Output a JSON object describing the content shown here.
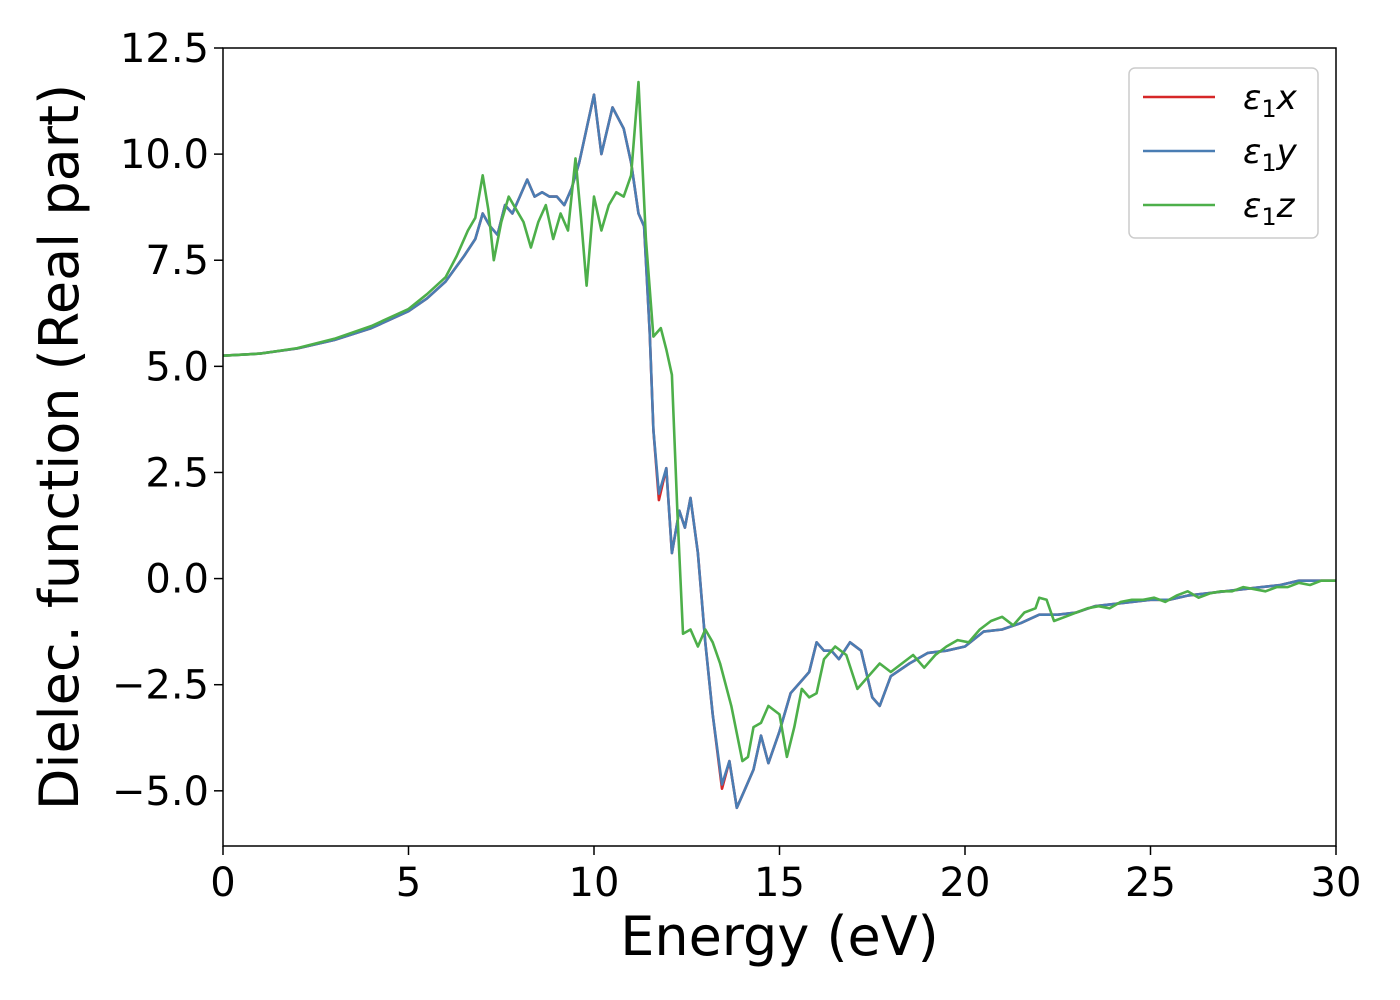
{
  "chart_data": {
    "type": "line",
    "title": "",
    "xlabel": "Energy (eV)",
    "ylabel": "Dielec. function (Real part)",
    "xlim": [
      0,
      30
    ],
    "ylim": [
      -6.3,
      12.5
    ],
    "xticks": [
      0,
      5,
      10,
      15,
      20,
      25,
      30
    ],
    "yticks": [
      -5.0,
      -2.5,
      0.0,
      2.5,
      5.0,
      7.5,
      10.0,
      12.5
    ],
    "xtick_labels": [
      "0",
      "5",
      "10",
      "15",
      "20",
      "25",
      "30"
    ],
    "ytick_labels": [
      "−5.0",
      "−2.5",
      "0.0",
      "2.5",
      "5.0",
      "7.5",
      "10.0",
      "12.5"
    ],
    "grid": false,
    "legend_position": "top-right",
    "series": [
      {
        "name": "ε₁x",
        "label_main": "ε",
        "label_sub": "1",
        "label_var": "x",
        "color": "#d62728",
        "x": [
          0,
          1,
          2,
          3,
          4,
          5,
          5.5,
          6,
          6.5,
          6.8,
          7.0,
          7.2,
          7.4,
          7.6,
          7.8,
          8.0,
          8.2,
          8.4,
          8.6,
          8.8,
          9.0,
          9.2,
          9.4,
          9.6,
          9.8,
          10.0,
          10.2,
          10.5,
          10.8,
          11.0,
          11.2,
          11.35,
          11.5,
          11.6,
          11.75,
          11.95,
          12.1,
          12.3,
          12.45,
          12.6,
          12.8,
          13.0,
          13.2,
          13.45,
          13.65,
          13.85,
          14.05,
          14.3,
          14.5,
          14.7,
          15.0,
          15.3,
          15.6,
          15.8,
          16.0,
          16.2,
          16.4,
          16.6,
          16.9,
          17.2,
          17.5,
          17.7,
          18.0,
          18.5,
          19.0,
          19.5,
          20.0,
          20.5,
          21.0,
          21.5,
          22.0,
          22.5,
          23.0,
          23.5,
          24.0,
          24.5,
          25.0,
          25.5,
          26.0,
          26.5,
          27.0,
          27.5,
          28.0,
          28.5,
          29.0,
          29.5,
          30.0
        ],
        "y": [
          5.25,
          5.3,
          5.42,
          5.62,
          5.9,
          6.3,
          6.6,
          7.0,
          7.6,
          8.0,
          8.6,
          8.3,
          8.1,
          8.8,
          8.6,
          9.0,
          9.4,
          9.0,
          9.1,
          9.0,
          9.0,
          8.8,
          9.2,
          9.8,
          10.6,
          11.4,
          10.0,
          11.1,
          10.6,
          9.8,
          8.6,
          8.3,
          5.8,
          3.5,
          1.85,
          2.6,
          0.6,
          1.6,
          1.2,
          1.9,
          0.6,
          -1.5,
          -3.2,
          -4.95,
          -4.3,
          -5.4,
          -5.0,
          -4.5,
          -3.7,
          -4.35,
          -3.6,
          -2.7,
          -2.4,
          -2.2,
          -1.5,
          -1.7,
          -1.7,
          -1.9,
          -1.5,
          -1.7,
          -2.8,
          -3.0,
          -2.3,
          -2.0,
          -1.75,
          -1.7,
          -1.6,
          -1.25,
          -1.2,
          -1.05,
          -0.85,
          -0.85,
          -0.8,
          -0.65,
          -0.6,
          -0.55,
          -0.5,
          -0.5,
          -0.4,
          -0.35,
          -0.3,
          -0.25,
          -0.2,
          -0.15,
          -0.05,
          -0.05,
          -0.05
        ]
      },
      {
        "name": "ε₁y",
        "label_main": "ε",
        "label_sub": "1",
        "label_var": "y",
        "color": "#4a7db3",
        "x": [
          0,
          1,
          2,
          3,
          4,
          5,
          5.5,
          6,
          6.5,
          6.8,
          7.0,
          7.2,
          7.4,
          7.6,
          7.8,
          8.0,
          8.2,
          8.4,
          8.6,
          8.8,
          9.0,
          9.2,
          9.4,
          9.6,
          9.8,
          10.0,
          10.2,
          10.5,
          10.8,
          11.0,
          11.2,
          11.35,
          11.5,
          11.6,
          11.75,
          11.95,
          12.1,
          12.3,
          12.45,
          12.6,
          12.8,
          13.0,
          13.2,
          13.45,
          13.65,
          13.85,
          14.05,
          14.3,
          14.5,
          14.7,
          15.0,
          15.3,
          15.6,
          15.8,
          16.0,
          16.2,
          16.4,
          16.6,
          16.9,
          17.2,
          17.5,
          17.7,
          18.0,
          18.5,
          19.0,
          19.5,
          20.0,
          20.5,
          21.0,
          21.5,
          22.0,
          22.5,
          23.0,
          23.5,
          24.0,
          24.5,
          25.0,
          25.5,
          26.0,
          26.5,
          27.0,
          27.5,
          28.0,
          28.5,
          29.0,
          29.5,
          30.0
        ],
        "y": [
          5.25,
          5.3,
          5.42,
          5.62,
          5.9,
          6.3,
          6.6,
          7.0,
          7.6,
          8.0,
          8.6,
          8.3,
          8.1,
          8.8,
          8.6,
          9.0,
          9.4,
          9.0,
          9.1,
          9.0,
          9.0,
          8.8,
          9.2,
          9.8,
          10.6,
          11.4,
          10.0,
          11.1,
          10.6,
          9.8,
          8.6,
          8.3,
          5.8,
          3.5,
          2.0,
          2.6,
          0.6,
          1.6,
          1.2,
          1.9,
          0.6,
          -1.5,
          -3.2,
          -4.85,
          -4.3,
          -5.4,
          -5.0,
          -4.5,
          -3.7,
          -4.35,
          -3.6,
          -2.7,
          -2.4,
          -2.2,
          -1.5,
          -1.7,
          -1.7,
          -1.9,
          -1.5,
          -1.7,
          -2.8,
          -3.0,
          -2.3,
          -2.0,
          -1.75,
          -1.7,
          -1.6,
          -1.25,
          -1.2,
          -1.05,
          -0.85,
          -0.85,
          -0.8,
          -0.65,
          -0.6,
          -0.55,
          -0.5,
          -0.5,
          -0.4,
          -0.35,
          -0.3,
          -0.25,
          -0.2,
          -0.15,
          -0.05,
          -0.05,
          -0.05
        ]
      },
      {
        "name": "ε₁z",
        "label_main": "ε",
        "label_sub": "1",
        "label_var": "z",
        "color": "#4daf4a",
        "x": [
          0,
          1,
          2,
          3,
          4,
          5,
          5.5,
          6,
          6.3,
          6.6,
          6.8,
          7.0,
          7.15,
          7.3,
          7.5,
          7.7,
          7.9,
          8.1,
          8.3,
          8.5,
          8.7,
          8.9,
          9.1,
          9.3,
          9.5,
          9.65,
          9.8,
          10.0,
          10.2,
          10.4,
          10.6,
          10.8,
          11.0,
          11.2,
          11.4,
          11.6,
          11.8,
          11.95,
          12.1,
          12.25,
          12.4,
          12.6,
          12.8,
          13.0,
          13.2,
          13.4,
          13.7,
          14.0,
          14.15,
          14.3,
          14.5,
          14.7,
          15.0,
          15.2,
          15.4,
          15.6,
          15.8,
          16.0,
          16.2,
          16.5,
          16.8,
          17.1,
          17.4,
          17.7,
          18.0,
          18.3,
          18.6,
          18.9,
          19.2,
          19.5,
          19.8,
          20.1,
          20.4,
          20.7,
          21.0,
          21.3,
          21.6,
          21.9,
          22.0,
          22.2,
          22.4,
          22.7,
          23.0,
          23.3,
          23.6,
          23.9,
          24.2,
          24.5,
          24.8,
          25.1,
          25.4,
          25.7,
          26.0,
          26.3,
          26.6,
          26.9,
          27.2,
          27.5,
          27.8,
          28.1,
          28.4,
          28.7,
          29.0,
          29.3,
          29.6,
          30.0
        ],
        "y": [
          5.25,
          5.3,
          5.43,
          5.65,
          5.95,
          6.35,
          6.7,
          7.1,
          7.6,
          8.2,
          8.5,
          9.5,
          8.7,
          7.5,
          8.4,
          9.0,
          8.7,
          8.4,
          7.8,
          8.4,
          8.8,
          8.0,
          8.6,
          8.2,
          9.9,
          8.5,
          6.9,
          9.0,
          8.2,
          8.8,
          9.1,
          9.0,
          9.5,
          11.7,
          8.0,
          5.7,
          5.9,
          5.4,
          4.8,
          1.5,
          -1.3,
          -1.2,
          -1.6,
          -1.2,
          -1.5,
          -2.0,
          -3.0,
          -4.3,
          -4.2,
          -3.5,
          -3.4,
          -3.0,
          -3.2,
          -4.2,
          -3.5,
          -2.6,
          -2.8,
          -2.7,
          -1.9,
          -1.6,
          -1.8,
          -2.6,
          -2.3,
          -2.0,
          -2.2,
          -2.0,
          -1.8,
          -2.1,
          -1.8,
          -1.6,
          -1.45,
          -1.5,
          -1.2,
          -1.0,
          -0.9,
          -1.1,
          -0.8,
          -0.7,
          -0.45,
          -0.5,
          -1.0,
          -0.9,
          -0.8,
          -0.7,
          -0.65,
          -0.7,
          -0.55,
          -0.5,
          -0.5,
          -0.45,
          -0.55,
          -0.4,
          -0.3,
          -0.45,
          -0.35,
          -0.3,
          -0.3,
          -0.2,
          -0.25,
          -0.3,
          -0.2,
          -0.2,
          -0.1,
          -0.15,
          -0.05,
          -0.05
        ]
      }
    ]
  }
}
